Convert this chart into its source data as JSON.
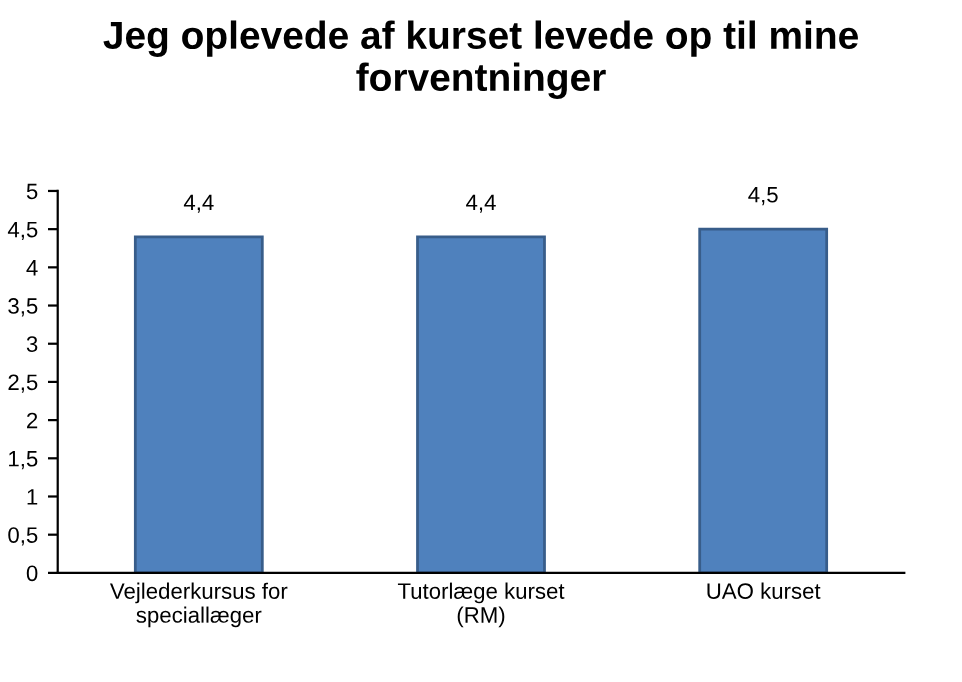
{
  "chart_data": {
    "type": "bar",
    "title": "Jeg oplevede af kurset levede op til mine forventninger",
    "categories": [
      "Vejlederkursus for speciallæger",
      "Tutorlæge kurset (RM)",
      "UAO kurset"
    ],
    "values": [
      4.4,
      4.4,
      4.5
    ],
    "value_labels": [
      "4,4",
      "4,4",
      "4,5"
    ],
    "color": "#4f81bd",
    "ylim": [
      0,
      5
    ],
    "yticks": [
      0,
      {
        "value": 0.5,
        "label": "0,5"
      },
      1,
      {
        "value": 1.5,
        "label": "1,5"
      },
      2,
      {
        "value": 2.5,
        "label": "2,5"
      },
      3,
      {
        "value": 3.5,
        "label": "3,5"
      },
      4,
      {
        "value": 4.5,
        "label": "4,5"
      },
      5
    ],
    "grid": false,
    "legend": false
  }
}
